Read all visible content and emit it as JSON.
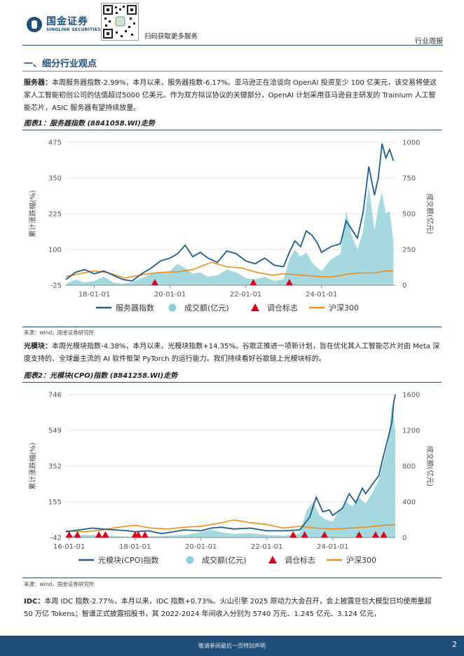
{
  "header": {
    "logo_cn": "国金证券",
    "logo_en": "SINOLINK SECURITIES",
    "scan_text": "扫码获取更多服务",
    "report_type": "行业周报"
  },
  "section": {
    "title": "一、细分行业观点"
  },
  "paragraphs": {
    "server_lead": "服务器：",
    "server_text": "本周服务器指数-2.99%，本月以来，服务器指数-6.17%。亚马逊正在洽谈向 OpenAI 投资至少 100 亿美元，该交易将使这家人工智能初创公司的估值超过5000 亿美元。作为双方拟议协议的关键部分，OpenAI 计划采用亚马逊自主研发的 Trainium 人工智能芯片，ASIC 服务器有望持续放量。",
    "optical_lead": "光模块：",
    "optical_text": "本周光模块指数-4.38%，本月以来，光模块指数+14.35%。谷歌正推进一项新计划，旨在优化其人工智能芯片对由 Meta 深度支持的、全球最主流的 AI 软件框架 PyTorch 的运行能力。我们持续看好谷歌链上光模块标的。",
    "idc_lead": "IDC：",
    "idc_text": "本周 IDC 指数-2.77%，本月以来，IDC 指数+0.73%。火山引擎 2025 原动力大会召开，会上披露豆包大模型日均使用量超 50 万亿 Tokens；智谱正式披露招股书，其 2022-2024 年间收入分别为 5740 万元、1.245 亿元、3.124 亿元，"
  },
  "figures": [
    {
      "title": "图表1：服务器指数 (8841058.WI)走势",
      "source": "来源：wind，国金证券研究所"
    },
    {
      "title": "图表2：光模块(CPO)指数 (8841258.WI)走势",
      "source": "来源：wind，国金证券研究所"
    }
  ],
  "chart_data": [
    {
      "type": "line",
      "ylabel": "累计涨跌幅(%)",
      "y2label": "成交额(亿元)",
      "ylim": [
        -25,
        475
      ],
      "yticks": [
        "475",
        "350",
        "225",
        "100",
        "-25"
      ],
      "y2lim": [
        0,
        1000
      ],
      "y2ticks": [
        "1000",
        "750",
        "500",
        "250",
        "0"
      ],
      "xlim": [
        2017.25,
        2025.95
      ],
      "xticks": [
        {
          "x": 2018,
          "label": "18-01-01"
        },
        {
          "x": 2020,
          "label": "20-01-01"
        },
        {
          "x": 2022,
          "label": "22-01-01"
        },
        {
          "x": 2024,
          "label": "24-01-01"
        }
      ],
      "legend": [
        "服务器指数",
        "成交额(亿元)",
        "调仓标志",
        "沪深300"
      ],
      "colors": {
        "index": "#1f5c8a",
        "volume": "#8ecfd7",
        "marker": "#d6001c",
        "hs300": "#f08c1e"
      },
      "series": [
        {
          "name": "服务器指数",
          "x": [
            2017.25,
            2017.5,
            2017.75,
            2018.0,
            2018.25,
            2018.5,
            2018.75,
            2019.0,
            2019.25,
            2019.5,
            2019.75,
            2020.0,
            2020.2,
            2020.4,
            2020.6,
            2020.8,
            2021.0,
            2021.25,
            2021.5,
            2021.75,
            2022.0,
            2022.25,
            2022.5,
            2022.75,
            2023.0,
            2023.15,
            2023.3,
            2023.45,
            2023.6,
            2023.75,
            2023.9,
            2024.0,
            2024.25,
            2024.5,
            2024.65,
            2024.8,
            2024.95,
            2025.1,
            2025.25,
            2025.4,
            2025.5,
            2025.6,
            2025.7,
            2025.8,
            2025.9
          ],
          "values": [
            -5,
            20,
            30,
            15,
            25,
            10,
            -5,
            -10,
            15,
            35,
            60,
            70,
            85,
            115,
            75,
            90,
            70,
            55,
            95,
            85,
            60,
            50,
            70,
            45,
            40,
            90,
            130,
            110,
            165,
            150,
            120,
            90,
            110,
            120,
            200,
            170,
            140,
            230,
            390,
            290,
            350,
            470,
            420,
            450,
            410
          ]
        },
        {
          "name": "成交额(亿元)",
          "x": [
            2017.25,
            2017.5,
            2017.75,
            2018.0,
            2018.25,
            2018.5,
            2018.75,
            2019.0,
            2019.25,
            2019.5,
            2019.75,
            2020.0,
            2020.2,
            2020.4,
            2020.6,
            2020.8,
            2021.0,
            2021.25,
            2021.5,
            2021.75,
            2022.0,
            2022.25,
            2022.5,
            2022.75,
            2023.0,
            2023.15,
            2023.3,
            2023.45,
            2023.6,
            2023.75,
            2023.9,
            2024.0,
            2024.25,
            2024.5,
            2024.65,
            2024.8,
            2024.95,
            2025.1,
            2025.25,
            2025.4,
            2025.5,
            2025.6,
            2025.7,
            2025.8,
            2025.9
          ],
          "values": [
            10,
            40,
            20,
            30,
            60,
            20,
            10,
            20,
            50,
            80,
            90,
            100,
            150,
            120,
            80,
            90,
            60,
            70,
            110,
            90,
            50,
            40,
            60,
            30,
            40,
            180,
            250,
            200,
            230,
            160,
            120,
            100,
            180,
            220,
            520,
            350,
            250,
            380,
            700,
            380,
            550,
            650,
            500,
            520,
            300
          ]
        },
        {
          "name": "沪深300",
          "x": [
            2017.25,
            2017.6,
            2018.0,
            2018.4,
            2018.8,
            2019.0,
            2019.4,
            2019.8,
            2020.2,
            2020.6,
            2020.9,
            2021.1,
            2021.5,
            2021.9,
            2022.3,
            2022.7,
            2023.0,
            2023.5,
            2024.0,
            2024.3,
            2024.75,
            2025.0,
            2025.4,
            2025.7,
            2025.9
          ],
          "values": [
            5,
            15,
            25,
            18,
            0,
            5,
            15,
            20,
            22,
            30,
            45,
            55,
            40,
            35,
            20,
            10,
            15,
            10,
            5,
            5,
            15,
            18,
            18,
            25,
            25
          ]
        }
      ],
      "markers_x": [
        2019.6,
        2022.2,
        2023.15
      ]
    },
    {
      "type": "line",
      "ylabel": "累计涨跌幅(%)",
      "y2label": "成交额(亿元)",
      "ylim": [
        -42,
        746
      ],
      "yticks": [
        "746",
        "549",
        "352",
        "155",
        "-42"
      ],
      "y2lim": [
        0,
        1600
      ],
      "y2ticks": [
        "1600",
        "1200",
        "800",
        "400",
        "0"
      ],
      "xlim": [
        2015.9,
        2025.9
      ],
      "xticks": [
        {
          "x": 2016,
          "label": "16-01-01"
        },
        {
          "x": 2018,
          "label": "18-01-01"
        },
        {
          "x": 2020,
          "label": "20-01-01"
        },
        {
          "x": 2022,
          "label": "22-01-01"
        },
        {
          "x": 2024,
          "label": "24-01-01"
        }
      ],
      "legend": [
        "光模块(CPO)指数",
        "成交额(亿元)",
        "调仓标志",
        "沪深300"
      ],
      "colors": {
        "index": "#1f5c8a",
        "volume": "#8ecfd7",
        "marker": "#d6001c",
        "hs300": "#f08c1e"
      },
      "series": [
        {
          "name": "光模块(CPO)指数",
          "x": [
            2015.9,
            2016.3,
            2016.7,
            2017.0,
            2017.4,
            2017.8,
            2018.0,
            2018.4,
            2018.8,
            2019.0,
            2019.5,
            2020.0,
            2020.3,
            2020.6,
            2021.0,
            2021.5,
            2022.0,
            2022.5,
            2023.0,
            2023.3,
            2023.5,
            2023.7,
            2023.9,
            2024.0,
            2024.3,
            2024.5,
            2024.7,
            2024.9,
            2025.0,
            2025.2,
            2025.4,
            2025.5,
            2025.6,
            2025.7,
            2025.8,
            2025.85,
            2025.9
          ],
          "values": [
            -10,
            0,
            10,
            5,
            0,
            -5,
            -10,
            -5,
            -20,
            -15,
            0,
            -5,
            10,
            15,
            5,
            10,
            -5,
            -5,
            0,
            70,
            180,
            100,
            110,
            80,
            120,
            200,
            150,
            230,
            200,
            250,
            300,
            380,
            450,
            520,
            600,
            700,
            746
          ]
        },
        {
          "name": "成交额(亿元)",
          "x": [
            2015.9,
            2016.5,
            2017.0,
            2017.5,
            2018.0,
            2018.5,
            2019.0,
            2019.5,
            2020.0,
            2020.3,
            2020.6,
            2021.0,
            2021.5,
            2022.0,
            2022.5,
            2023.0,
            2023.2,
            2023.4,
            2023.6,
            2023.8,
            2024.0,
            2024.2,
            2024.4,
            2024.6,
            2024.8,
            2025.0,
            2025.2,
            2025.4,
            2025.5,
            2025.6,
            2025.7,
            2025.8,
            2025.9
          ],
          "values": [
            20,
            30,
            25,
            15,
            10,
            15,
            20,
            30,
            60,
            90,
            60,
            40,
            50,
            30,
            20,
            40,
            300,
            400,
            250,
            200,
            180,
            300,
            400,
            350,
            450,
            380,
            500,
            650,
            800,
            950,
            1100,
            1500,
            1200
          ]
        },
        {
          "name": "沪深300",
          "x": [
            2015.9,
            2016.5,
            2017.0,
            2017.5,
            2018.0,
            2018.5,
            2019.0,
            2019.5,
            2020.0,
            2020.5,
            2021.0,
            2021.5,
            2022.0,
            2022.5,
            2023.0,
            2023.5,
            2024.0,
            2024.5,
            2025.0,
            2025.5,
            2025.9
          ],
          "values": [
            -5,
            -10,
            0,
            15,
            25,
            10,
            5,
            15,
            20,
            35,
            55,
            40,
            30,
            10,
            20,
            10,
            5,
            10,
            15,
            25,
            30
          ]
        }
      ],
      "markers_x": [
        2016.0,
        2016.25,
        2016.9,
        2017.1,
        2018.0,
        2018.1,
        2018.3,
        2022.8,
        2023.15,
        2023.75,
        2024.8,
        2025.3,
        2025.55
      ]
    }
  ]
}
